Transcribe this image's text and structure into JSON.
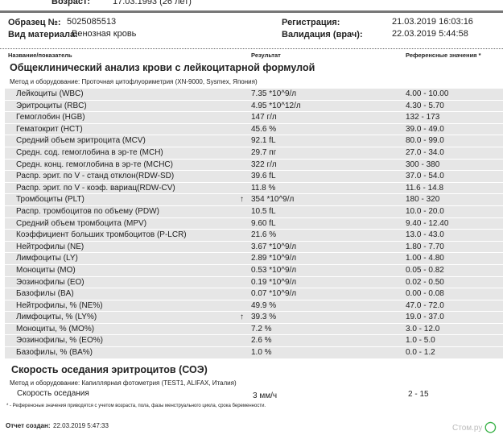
{
  "patient": {
    "age_label": "Возраст:",
    "age_value": "17.03.1993 (26 лет)"
  },
  "header": {
    "sample_label": "Образец №:",
    "sample_value": "5025085513",
    "material_label": "Вид материала:",
    "material_value": "Венозная кровь",
    "reg_label": "Регистрация:",
    "reg_value": "21.03.2019  16:03:16",
    "valid_label": "Валидация (врач):",
    "valid_value": "22.03.2019   5:44:58"
  },
  "columns": {
    "name": "Название/показатель",
    "result": "Результат",
    "ref": "Референсные значения *"
  },
  "cbc": {
    "title": "Общеклинический анализ крови с лейкоцитарной формулой",
    "method": "Метод и оборудование:  Проточная цитофлуориметрия (XN-9000, Sysmex, Япония)",
    "rows": [
      {
        "name": "Лейкоциты (WBC)",
        "result": "7.35 *10^9/л",
        "ref": "4.00 - 10.00",
        "flag": ""
      },
      {
        "name": "Эритроциты (RBC)",
        "result": "4.95 *10^12/л",
        "ref": "4.30 - 5.70",
        "flag": ""
      },
      {
        "name": "Гемоглобин (HGB)",
        "result": "147 г/л",
        "ref": "132 - 173",
        "flag": ""
      },
      {
        "name": "Гематокрит (HCT)",
        "result": "45.6 %",
        "ref": "39.0 - 49.0",
        "flag": ""
      },
      {
        "name": "Средний объем эритроцита (MCV)",
        "result": "92.1 fL",
        "ref": "80.0 - 99.0",
        "flag": ""
      },
      {
        "name": "Средн. сод. гемоглобина в эр-те (MCH)",
        "result": "29.7 пг",
        "ref": "27.0 - 34.0",
        "flag": ""
      },
      {
        "name": "Средн. конц. гемоглобина в эр-те (MCHC)",
        "result": "322 г/л",
        "ref": "300 - 380",
        "flag": ""
      },
      {
        "name": "Распр. эрит. по V - станд отклон(RDW-SD)",
        "result": "39.6 fL",
        "ref": "37.0 - 54.0",
        "flag": ""
      },
      {
        "name": "Распр. эрит. по V - коэф. вариац(RDW-CV)",
        "result": "11.8 %",
        "ref": "11.6 - 14.8",
        "flag": ""
      },
      {
        "name": "Тромбоциты (PLT)",
        "result": "354 *10^9/л",
        "ref": "180 - 320",
        "flag": "↑"
      },
      {
        "name": "Распр. тромбоцитов по объему (PDW)",
        "result": "10.5 fL",
        "ref": "10.0 - 20.0",
        "flag": ""
      },
      {
        "name": "Средний объем тромбоцита (MPV)",
        "result": "9.60 fL",
        "ref": "9.40 - 12.40",
        "flag": ""
      },
      {
        "name": "Коэффициент больших тромбоцитов (P-LCR)",
        "result": "21.6 %",
        "ref": "13.0 - 43.0",
        "flag": ""
      },
      {
        "name": "Нейтрофилы (NE)",
        "result": "3.67 *10^9/л",
        "ref": "1.80 - 7.70",
        "flag": ""
      },
      {
        "name": "Лимфоциты (LY)",
        "result": "2.89 *10^9/л",
        "ref": "1.00 - 4.80",
        "flag": ""
      },
      {
        "name": "Моноциты (MO)",
        "result": "0.53 *10^9/л",
        "ref": "0.05 - 0.82",
        "flag": ""
      },
      {
        "name": "Эозинофилы (EO)",
        "result": "0.19 *10^9/л",
        "ref": "0.02 - 0.50",
        "flag": ""
      },
      {
        "name": "Базофилы (BA)",
        "result": "0.07 *10^9/л",
        "ref": "0.00 - 0.08",
        "flag": ""
      },
      {
        "name": "Нейтрофилы, % (NE%)",
        "result": "49.9 %",
        "ref": "47.0 - 72.0",
        "flag": ""
      },
      {
        "name": "Лимфоциты, % (LY%)",
        "result": "39.3 %",
        "ref": "19.0 - 37.0",
        "flag": "↑"
      },
      {
        "name": "Моноциты, % (MO%)",
        "result": "7.2 %",
        "ref": "3.0 - 12.0",
        "flag": ""
      },
      {
        "name": "Эозинофилы, % (EO%)",
        "result": "2.6 %",
        "ref": "1.0 - 5.0",
        "flag": ""
      },
      {
        "name": "Базофилы, % (BA%)",
        "result": "1.0 %",
        "ref": "0.0 - 1.2",
        "flag": ""
      }
    ]
  },
  "esr": {
    "title": "Скорость оседания эритроцитов (СОЭ)",
    "method": "Метод и оборудование:  Капиллярная фотометрия (TEST1, ALIFAX, Италия)",
    "name": "Скорость оседания",
    "result": "3 мм/ч",
    "ref": "2 - 15"
  },
  "footnote": "* - Референсные значения приводятся с учетом возраста, пола, фазы менструального цикла, срока беременности.",
  "report": {
    "label": "Отчет создан:",
    "value": "22.03.2019  5:47:33"
  },
  "watermark": "Стом.ру"
}
